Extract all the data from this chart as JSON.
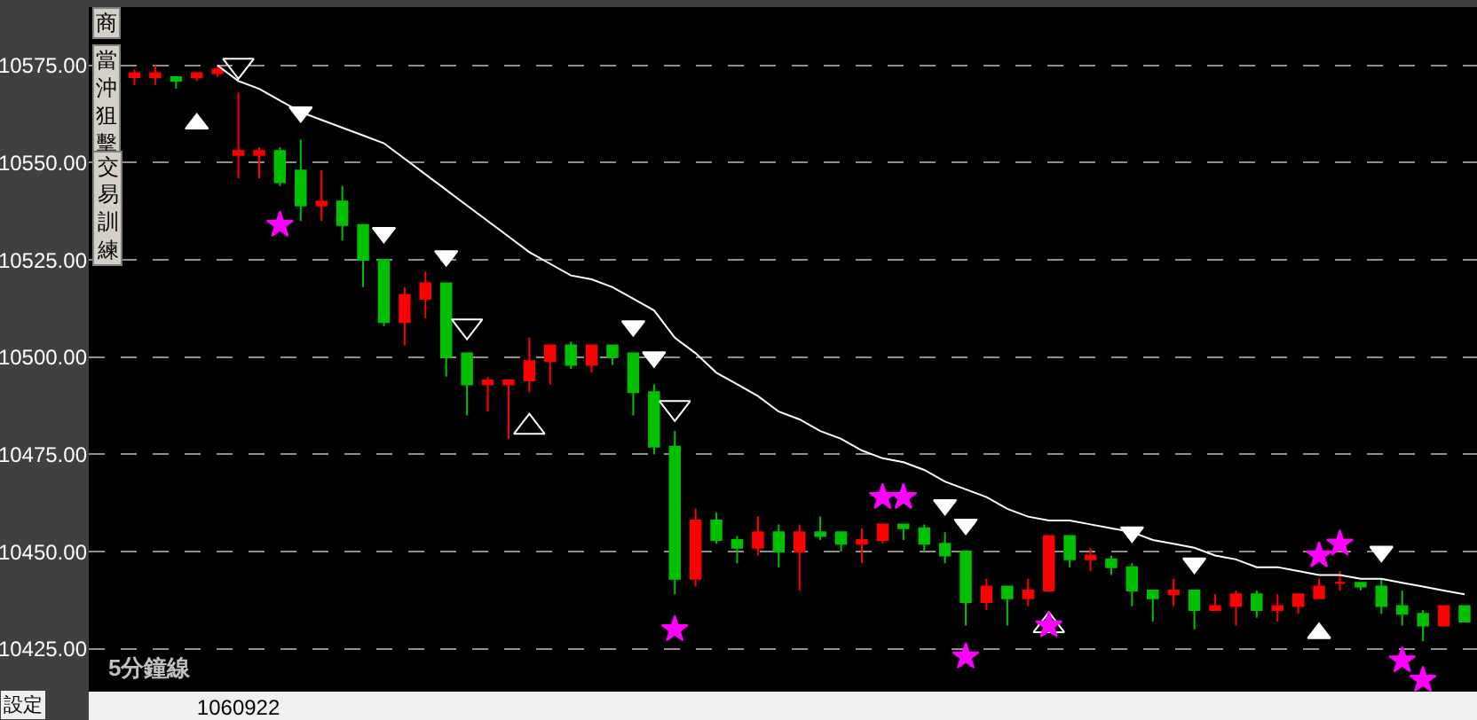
{
  "chart_data": {
    "type": "candlestick",
    "categories": [
      null,
      null,
      null,
      null,
      null,
      "1060922",
      null,
      null,
      null,
      null,
      null,
      null,
      null,
      null,
      null,
      null,
      null,
      null,
      null,
      null,
      null,
      null,
      null,
      null,
      null,
      null,
      null,
      null,
      null,
      null,
      null,
      null,
      null,
      null,
      null,
      null,
      null,
      null,
      null,
      null,
      null,
      null,
      null,
      null,
      null,
      null,
      null,
      null,
      null,
      null,
      null,
      null,
      null,
      null,
      null,
      null,
      null,
      null,
      null,
      null,
      null,
      null,
      null,
      null,
      null
    ],
    "ohlc": [
      [
        10572,
        10574,
        10570,
        10573
      ],
      [
        10572,
        10575,
        10570,
        10573
      ],
      [
        10572,
        10572,
        10569,
        10571
      ],
      [
        10572,
        10573,
        10571,
        10573
      ],
      [
        10573,
        10575,
        10572,
        10574
      ],
      [
        10552,
        10568,
        10546,
        10553
      ],
      [
        10552,
        10554,
        10546,
        10553
      ],
      [
        10553,
        10554,
        10544,
        10545
      ],
      [
        10548,
        10556,
        10535,
        10539
      ],
      [
        10539,
        10548,
        10535,
        10540
      ],
      [
        10540,
        10544,
        10530,
        10534
      ],
      [
        10534,
        10534,
        10518,
        10525
      ],
      [
        10525,
        10525,
        10508,
        10509
      ],
      [
        10509,
        10518,
        10503,
        10516
      ],
      [
        10515,
        10522,
        10510,
        10519
      ],
      [
        10519,
        10519,
        10495,
        10500
      ],
      [
        10501,
        10501,
        10485,
        10493
      ],
      [
        10493,
        10495,
        10486,
        10494
      ],
      [
        10493,
        10494,
        10479,
        10494
      ],
      [
        10494,
        10505,
        10491,
        10499
      ],
      [
        10499,
        10503,
        10493,
        10503
      ],
      [
        10503,
        10504,
        10497,
        10498
      ],
      [
        10498,
        10503,
        10496,
        10503
      ],
      [
        10503,
        10503,
        10498,
        10500
      ],
      [
        10501,
        10501,
        10485,
        10491
      ],
      [
        10491,
        10493,
        10475,
        10477
      ],
      [
        10477,
        10481,
        10439,
        10443
      ],
      [
        10443,
        10461,
        10441,
        10458
      ],
      [
        10458,
        10460,
        10452,
        10453
      ],
      [
        10453,
        10454,
        10447,
        10451
      ],
      [
        10451,
        10459,
        10449,
        10455
      ],
      [
        10455,
        10457,
        10446,
        10450
      ],
      [
        10450,
        10457,
        10440,
        10455
      ],
      [
        10455,
        10459,
        10453,
        10454
      ],
      [
        10455,
        10455,
        10450,
        10452
      ],
      [
        10452,
        10456,
        10447,
        10453
      ],
      [
        10453,
        10457,
        10452,
        10457
      ],
      [
        10457,
        10457,
        10453,
        10456
      ],
      [
        10456,
        10457,
        10450,
        10452
      ],
      [
        10452,
        10455,
        10447,
        10449
      ],
      [
        10450,
        10450,
        10431,
        10437
      ],
      [
        10437,
        10443,
        10435,
        10441
      ],
      [
        10441,
        10441,
        10431,
        10438
      ],
      [
        10438,
        10443,
        10436,
        10440
      ],
      [
        10440,
        10454,
        10440,
        10454
      ],
      [
        10454,
        10454,
        10446,
        10448
      ],
      [
        10448,
        10451,
        10445,
        10449
      ],
      [
        10448,
        10449,
        10444,
        10446
      ],
      [
        10446,
        10447,
        10436,
        10440
      ],
      [
        10440,
        10440,
        10432,
        10438
      ],
      [
        10439,
        10443,
        10436,
        10440
      ],
      [
        10440,
        10440,
        10430,
        10435
      ],
      [
        10435,
        10439,
        10435,
        10436
      ],
      [
        10436,
        10440,
        10431,
        10439
      ],
      [
        10439,
        10440,
        10433,
        10435
      ],
      [
        10435,
        10439,
        10432,
        10436
      ],
      [
        10436,
        10439,
        10434,
        10439
      ],
      [
        10438,
        10443,
        10438,
        10441
      ],
      [
        10442,
        10445,
        10440,
        10442
      ],
      [
        10442,
        10442,
        10440,
        10441
      ],
      [
        10441,
        10443,
        10434,
        10436
      ],
      [
        10436,
        10440,
        10431,
        10434
      ],
      [
        10434,
        10435,
        10427,
        10431
      ],
      [
        10431,
        10436,
        10431,
        10436
      ],
      [
        10436,
        10436,
        10432,
        10432
      ]
    ],
    "colors": [
      "#ff0000",
      "#ff0000",
      "#00c000",
      "#ff0000",
      "#ff0000",
      "#ff0000",
      "#ff0000",
      "#00c000",
      "#00c000",
      "#ff0000",
      "#00c000",
      "#00c000",
      "#00c000",
      "#ff0000",
      "#ff0000",
      "#00c000",
      "#00c000",
      "#ff0000",
      "#ff0000",
      "#ff0000",
      "#ff0000",
      "#00c000",
      "#ff0000",
      "#00c000",
      "#00c000",
      "#00c000",
      "#00c000",
      "#ff0000",
      "#00c000",
      "#00c000",
      "#ff0000",
      "#00c000",
      "#ff0000",
      "#00c000",
      "#00c000",
      "#ff0000",
      "#ff0000",
      "#00c000",
      "#00c000",
      "#00c000",
      "#00c000",
      "#ff0000",
      "#00c000",
      "#ff0000",
      "#ff0000",
      "#00c000",
      "#ff0000",
      "#00c000",
      "#00c000",
      "#00c000",
      "#ff0000",
      "#00c000",
      "#ff0000",
      "#ff0000",
      "#00c000",
      "#ff0000",
      "#ff0000",
      "#ff0000",
      "#ff0000",
      "#00c000",
      "#00c000",
      "#00c000",
      "#00c000",
      "#ff0000",
      "#00c000"
    ],
    "series": [
      {
        "type": "line",
        "color": "#ffffff",
        "values": [
          null,
          null,
          null,
          null,
          10575,
          10571,
          10569,
          10566,
          10563,
          10561,
          10559,
          10557,
          10555,
          10551,
          10547,
          10543,
          10539,
          10535,
          10531,
          10527,
          10524,
          10521,
          10520,
          10518,
          10515,
          10512,
          10505,
          10501,
          10496,
          10493,
          10490,
          10486,
          10484,
          10481,
          10479,
          10476,
          10474,
          10473,
          10471,
          10468,
          10466,
          10464,
          10461,
          10459,
          10458,
          10458,
          10457,
          10456,
          10455,
          10453,
          10452,
          10451,
          10449,
          10448,
          10446,
          10446,
          10445,
          10444,
          10444,
          10443,
          10443,
          10442,
          10441,
          10440,
          10439
        ]
      },
      {
        "type": "scatter",
        "marker": "triangle-down",
        "color": "#ffffff",
        "values": [
          null,
          null,
          null,
          null,
          null,
          null,
          null,
          null,
          10563,
          null,
          null,
          null,
          10532,
          null,
          null,
          10526,
          null,
          null,
          null,
          null,
          null,
          null,
          null,
          null,
          10508,
          10500,
          null,
          null,
          null,
          null,
          null,
          null,
          null,
          null,
          null,
          null,
          null,
          null,
          null,
          10462,
          10457,
          null,
          null,
          null,
          null,
          null,
          null,
          null,
          10455,
          null,
          null,
          10447,
          null,
          null,
          null,
          null,
          null,
          null,
          null,
          null,
          10450,
          null,
          null,
          null,
          null
        ]
      },
      {
        "type": "scatter",
        "marker": "triangle-down-open",
        "color": "#ffffff",
        "values": [
          null,
          null,
          null,
          null,
          null,
          10575,
          null,
          null,
          null,
          null,
          null,
          null,
          null,
          null,
          null,
          null,
          10508,
          null,
          null,
          null,
          null,
          null,
          null,
          null,
          null,
          null,
          10487,
          null,
          null,
          null,
          null,
          null,
          null,
          null,
          null,
          null,
          null,
          null,
          null,
          null,
          null,
          null,
          null,
          null,
          null,
          null,
          null,
          null,
          null,
          null,
          null,
          null,
          null,
          null,
          null,
          null,
          null,
          null,
          null,
          null,
          null,
          null,
          null,
          null,
          null
        ]
      },
      {
        "type": "scatter",
        "marker": "triangle",
        "color": "#ffffff",
        "values": [
          null,
          null,
          null,
          10560,
          null,
          null,
          null,
          null,
          null,
          null,
          null,
          null,
          null,
          null,
          null,
          null,
          null,
          null,
          null,
          null,
          null,
          null,
          null,
          null,
          null,
          null,
          null,
          null,
          null,
          null,
          null,
          null,
          null,
          null,
          null,
          null,
          null,
          null,
          null,
          null,
          null,
          null,
          null,
          null,
          null,
          null,
          null,
          null,
          null,
          null,
          null,
          null,
          null,
          null,
          null,
          null,
          null,
          10429,
          null,
          null,
          null,
          null,
          null,
          null,
          null
        ]
      },
      {
        "type": "scatter",
        "marker": "triangle-open",
        "color": "#ffffff",
        "values": [
          null,
          null,
          null,
          null,
          null,
          null,
          null,
          null,
          null,
          null,
          null,
          null,
          null,
          null,
          null,
          null,
          null,
          null,
          null,
          10482,
          null,
          null,
          null,
          null,
          null,
          null,
          null,
          null,
          null,
          null,
          null,
          null,
          null,
          null,
          null,
          null,
          null,
          null,
          null,
          null,
          null,
          null,
          null,
          null,
          10431,
          null,
          null,
          null,
          null,
          null,
          null,
          null,
          null,
          null,
          null,
          null,
          null,
          null,
          null,
          null,
          null,
          null,
          null,
          null,
          null
        ]
      },
      {
        "type": "scatter",
        "marker": "star",
        "color": "#ff00ff",
        "values": [
          null,
          null,
          null,
          null,
          null,
          null,
          null,
          10534,
          null,
          null,
          null,
          null,
          null,
          null,
          null,
          null,
          null,
          null,
          null,
          null,
          null,
          null,
          null,
          null,
          null,
          null,
          10430,
          null,
          null,
          null,
          null,
          null,
          null,
          null,
          null,
          null,
          10464,
          10464,
          null,
          null,
          10423,
          null,
          null,
          null,
          10431,
          null,
          null,
          null,
          null,
          null,
          null,
          null,
          null,
          null,
          null,
          null,
          null,
          10449,
          10452,
          null,
          null,
          10422,
          10417,
          null,
          null
        ]
      }
    ],
    "ylim": [
      10414,
      10590
    ],
    "yticks": [
      {
        "value": 10425,
        "label": "10425.00"
      },
      {
        "value": 10450,
        "label": "10450.00"
      },
      {
        "value": 10475,
        "label": "10475.00"
      },
      {
        "value": 10500,
        "label": "10500.00"
      },
      {
        "value": 10525,
        "label": "10525.00"
      },
      {
        "value": 10550,
        "label": "10550.00"
      },
      {
        "value": 10575,
        "label": "10575.00"
      }
    ],
    "grid": "y",
    "annotations": [
      "5分鐘線",
      "設定",
      "商",
      "當沖狙擊",
      "交易訓練"
    ]
  }
}
